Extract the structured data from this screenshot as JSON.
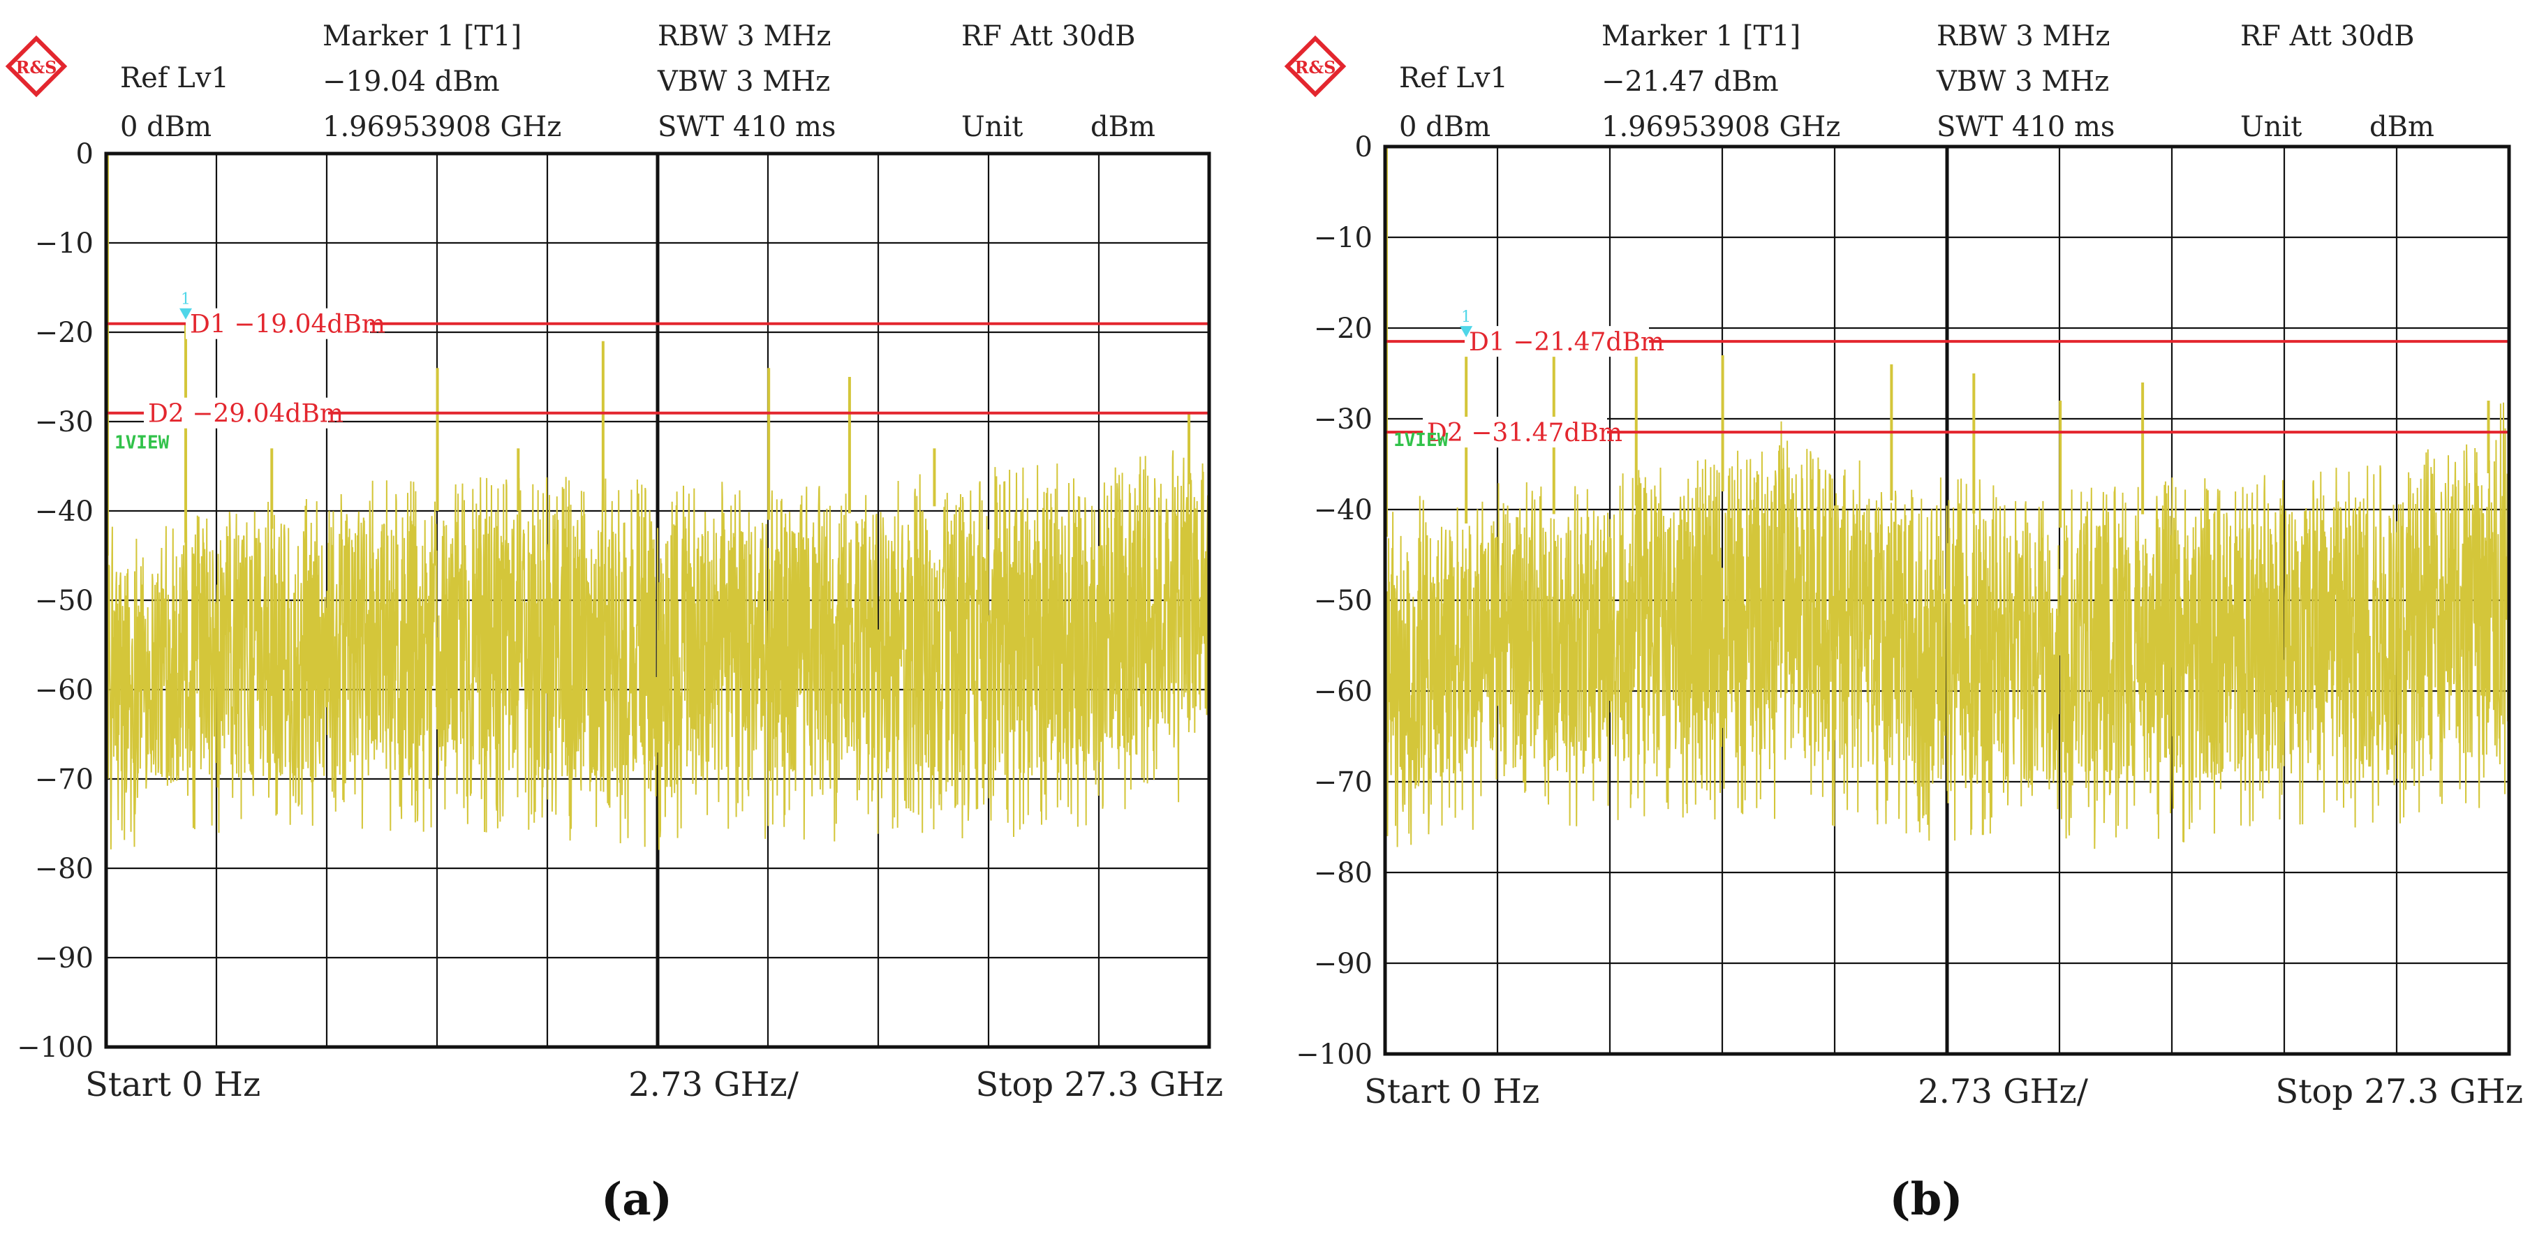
{
  "chart_data": [
    {
      "type": "line",
      "panel_label": "(a)",
      "logo": "R&S",
      "header": {
        "ref_lvl_label": "Ref Lv1",
        "ref_lvl_value": "0 dBm",
        "marker_label": "Marker 1 [T1]",
        "marker_level": "−19.04 dBm",
        "marker_freq": "1.96953908 GHz",
        "rbw": "RBW   3 MHz",
        "vbw": "VBW   3 MHz",
        "swt": "SWT   410 ms",
        "rf_att": "RF Att   30dB",
        "unit_label": "Unit",
        "unit_value": "dBm"
      },
      "footer": {
        "start": "Start 0 Hz",
        "span": "2.73 GHz/",
        "stop": "Stop 27.3 GHz"
      },
      "x_range_ghz": [
        0,
        27.3
      ],
      "ylim": [
        -100,
        0
      ],
      "ytick_labels": [
        "0",
        "−10",
        "−20",
        "−30",
        "−40",
        "−50",
        "−60",
        "−70",
        "−80",
        "−90",
        "−100"
      ],
      "grid": true,
      "lines": [
        {
          "label": "D1 −19.04dBm",
          "value": -19.04,
          "color": "#e3262e"
        },
        {
          "label": "D2 −29.04dBm",
          "value": -29.04,
          "color": "#e3262e"
        }
      ],
      "marker": {
        "label": "1",
        "x": 1.97,
        "y": -19.04
      },
      "view_label": "1VIEW",
      "trace_color": "#d4c63a",
      "noise_envelope": {
        "x": [
          0,
          2.7,
          5.5,
          8.2,
          10.9,
          13.7,
          16.4,
          19.1,
          21.8,
          24.6,
          26.8,
          27.3
        ],
        "upper": [
          -45,
          -43,
          -41,
          -40,
          -40,
          -40,
          -41,
          -40,
          -39,
          -38,
          -37,
          -38
        ],
        "lower": [
          -72,
          -70,
          -70,
          -69,
          -70,
          -71,
          -70,
          -70,
          -70,
          -69,
          -66,
          -63
        ]
      },
      "spurs": [
        {
          "x": 0.0,
          "y": 0
        },
        {
          "x": 1.97,
          "y": -19.0
        },
        {
          "x": 4.1,
          "y": -33
        },
        {
          "x": 8.2,
          "y": -24
        },
        {
          "x": 10.2,
          "y": -33
        },
        {
          "x": 12.3,
          "y": -21
        },
        {
          "x": 16.4,
          "y": -24
        },
        {
          "x": 18.4,
          "y": -25
        },
        {
          "x": 20.5,
          "y": -33
        },
        {
          "x": 26.8,
          "y": -29
        }
      ]
    },
    {
      "type": "line",
      "panel_label": "(b)",
      "logo": "R&S",
      "header": {
        "ref_lvl_label": "Ref Lv1",
        "ref_lvl_value": "0 dBm",
        "marker_label": "Marker 1 [T1]",
        "marker_level": "−21.47 dBm",
        "marker_freq": "1.96953908 GHz",
        "rbw": "RBW   3 MHz",
        "vbw": "VBW   3 MHz",
        "swt": "SWT   410 ms",
        "rf_att": "RF Att   30dB",
        "unit_label": "Unit",
        "unit_value": "dBm"
      },
      "footer": {
        "start": "Start 0 Hz",
        "span": "2.73 GHz/",
        "stop": "Stop 27.3 GHz"
      },
      "x_range_ghz": [
        0,
        27.3
      ],
      "ylim": [
        -100,
        0
      ],
      "ytick_labels": [
        "0",
        "−10",
        "−20",
        "−30",
        "−40",
        "−50",
        "−60",
        "−70",
        "−80",
        "−90",
        "−100"
      ],
      "grid": true,
      "lines": [
        {
          "label": "D1 −21.47dBm",
          "value": -21.47,
          "color": "#e3262e"
        },
        {
          "label": "D2 −31.47dBm",
          "value": -31.47,
          "color": "#e3262e"
        }
      ],
      "marker": {
        "label": "1",
        "x": 1.97,
        "y": -21.47
      },
      "view_label": "1VIEW",
      "trace_color": "#d4c63a",
      "noise_envelope": {
        "x": [
          0,
          2.7,
          5.5,
          8.2,
          9.6,
          10.9,
          13.7,
          16.4,
          19.1,
          21.8,
          24.6,
          26.8,
          27.3
        ],
        "upper": [
          -43,
          -41,
          -40,
          -38,
          -34,
          -38,
          -40,
          -42,
          -40,
          -40,
          -38,
          -36,
          -29
        ],
        "lower": [
          -71,
          -69,
          -68,
          -68,
          -67,
          -68,
          -70,
          -71,
          -70,
          -69,
          -68,
          -67,
          -64
        ]
      },
      "spurs": [
        {
          "x": 0.0,
          "y": 0
        },
        {
          "x": 1.97,
          "y": -21.5
        },
        {
          "x": 4.1,
          "y": -22
        },
        {
          "x": 6.1,
          "y": -22
        },
        {
          "x": 8.2,
          "y": -23
        },
        {
          "x": 12.3,
          "y": -24
        },
        {
          "x": 14.3,
          "y": -25
        },
        {
          "x": 16.4,
          "y": -28
        },
        {
          "x": 18.4,
          "y": -26
        },
        {
          "x": 26.8,
          "y": -28
        }
      ]
    }
  ]
}
